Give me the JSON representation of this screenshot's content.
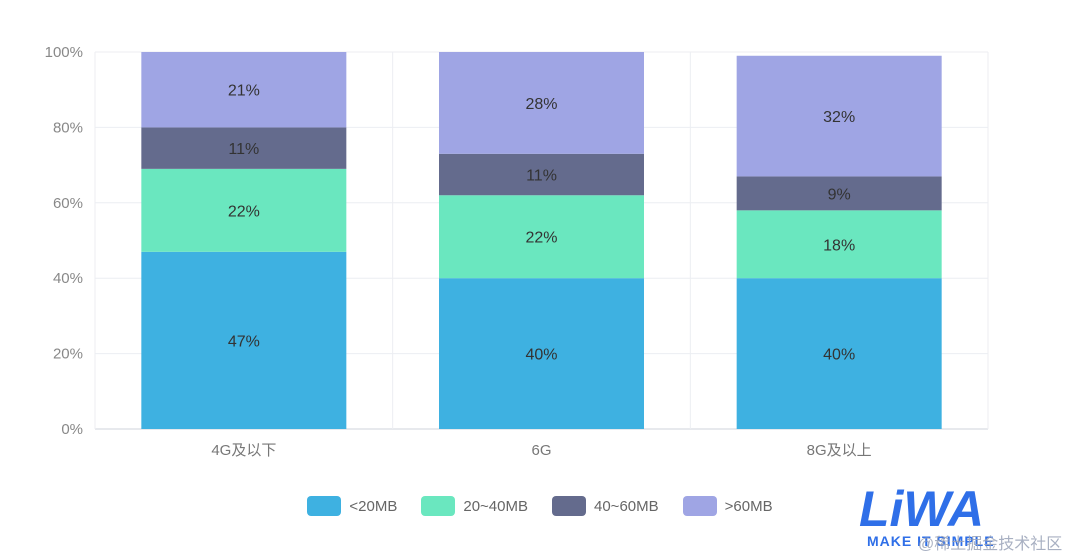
{
  "chart_data": {
    "type": "bar",
    "stacked": true,
    "categories": [
      "4G及以下",
      "6G",
      "8G及以上"
    ],
    "series": [
      {
        "name": "<20MB",
        "color": "#3eb1e1",
        "values": [
          47,
          40,
          40
        ],
        "labels": [
          "47%",
          "40%",
          "40%"
        ]
      },
      {
        "name": "20~40MB",
        "color": "#6ae7bf",
        "values": [
          22,
          22,
          18
        ],
        "labels": [
          "22%",
          "22%",
          "18%"
        ]
      },
      {
        "name": "40~60MB",
        "color": "#646b8d",
        "values": [
          11,
          11,
          9
        ],
        "labels": [
          "11%",
          "11%",
          "9%"
        ]
      },
      {
        "name": ">60MB",
        "color": "#9fa5e4",
        "values": [
          21,
          28,
          32
        ],
        "labels": [
          "21%",
          "28%",
          "32%"
        ]
      }
    ],
    "ylim": [
      0,
      100
    ],
    "yticks": [
      0,
      20,
      40,
      60,
      80,
      100
    ],
    "ytick_labels": [
      "0%",
      "20%",
      "40%",
      "60%",
      "80%",
      "100%"
    ],
    "grid": true,
    "legend_position": "bottom"
  },
  "logo": {
    "brand": "LiWA",
    "tagline": "MAKE IT SIMPLE"
  },
  "watermark": "@稀土掘金技术社区"
}
